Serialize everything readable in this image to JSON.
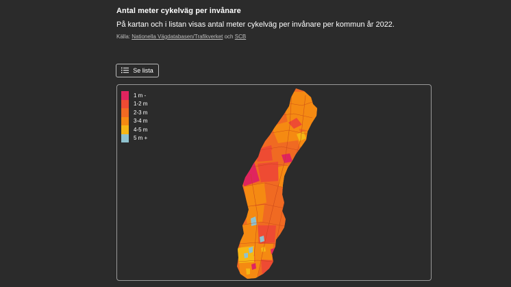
{
  "header": {
    "title": "Antal meter cykelväg per invånare",
    "description": "På kartan och i listan visas antal meter cykelväg per invånare per kommun år 2022.",
    "source_prefix": "Källa:",
    "source_link1": "Nationella Vägdatabasen/Trafikverket",
    "source_and": "och",
    "source_link2": "SCB"
  },
  "list_button": {
    "label": "Se lista",
    "icon": "list-icon"
  },
  "legend": {
    "items": [
      {
        "label": "1 m -",
        "color": "#e0245e"
      },
      {
        "label": "1-2 m",
        "color": "#ee4b33"
      },
      {
        "label": "2-3 m",
        "color": "#f06a22"
      },
      {
        "label": "3-4 m",
        "color": "#f58a12"
      },
      {
        "label": "4-5 m",
        "color": "#f6b715"
      },
      {
        "label": "5 m +",
        "color": "#8fc2cf"
      }
    ]
  },
  "map": {
    "region": "Sverige",
    "background": "#2b2b2b",
    "border_color": "#9a9a9a"
  }
}
